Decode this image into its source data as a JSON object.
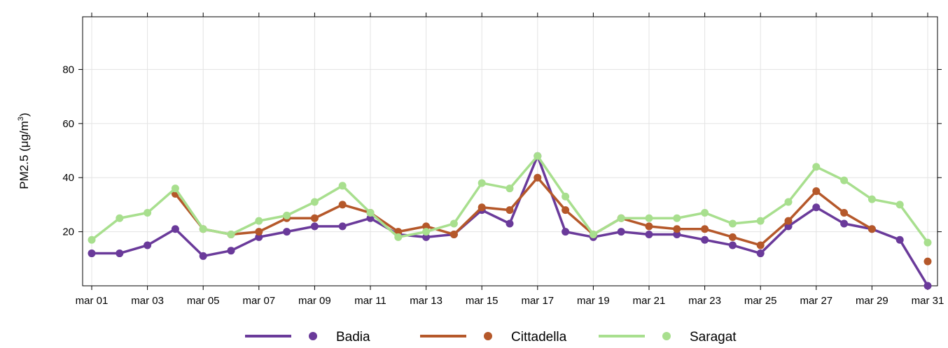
{
  "chart_data": {
    "type": "line",
    "title": "",
    "xlabel": "",
    "ylabel": "PM2.5 (μg/m",
    "ylabel_superscript": "3",
    "ylabel_suffix": ")",
    "ylim": [
      0,
      100
    ],
    "y_ticks": [
      20,
      40,
      60,
      80
    ],
    "x": [
      "mar 01",
      "mar 02",
      "mar 03",
      "mar 04",
      "mar 05",
      "mar 06",
      "mar 07",
      "mar 08",
      "mar 09",
      "mar 10",
      "mar 11",
      "mar 12",
      "mar 13",
      "mar 14",
      "mar 15",
      "mar 16",
      "mar 17",
      "mar 18",
      "mar 19",
      "mar 20",
      "mar 21",
      "mar 22",
      "mar 23",
      "mar 24",
      "mar 25",
      "mar 26",
      "mar 27",
      "mar 28",
      "mar 29",
      "mar 30",
      "mar 31"
    ],
    "x_tick_labels": [
      "mar 01",
      "mar 03",
      "mar 05",
      "mar 07",
      "mar 09",
      "mar 11",
      "mar 13",
      "mar 15",
      "mar 17",
      "mar 19",
      "mar 21",
      "mar 23",
      "mar 25",
      "mar 27",
      "mar 29",
      "mar 31"
    ],
    "grid": true,
    "legend_position": "bottom",
    "series": [
      {
        "name": "Badia",
        "color": "#6a3a9a",
        "values": [
          12,
          12,
          15,
          21,
          11,
          13,
          18,
          20,
          22,
          22,
          25,
          19,
          18,
          19,
          28,
          23,
          48,
          20,
          18,
          20,
          19,
          19,
          17,
          15,
          12,
          22,
          29,
          23,
          21,
          17,
          0
        ]
      },
      {
        "name": "Cittadella",
        "color": "#b5582a",
        "values": [
          null,
          null,
          null,
          34,
          21,
          19,
          20,
          25,
          25,
          30,
          27,
          20,
          22,
          19,
          29,
          28,
          40,
          28,
          19,
          25,
          22,
          21,
          21,
          18,
          15,
          24,
          35,
          27,
          21,
          null,
          9
        ]
      },
      {
        "name": "Saragat",
        "color": "#a8df8e",
        "values": [
          17,
          25,
          27,
          36,
          21,
          19,
          24,
          26,
          31,
          37,
          27,
          18,
          20,
          23,
          38,
          36,
          48,
          33,
          19,
          25,
          25,
          25,
          27,
          23,
          24,
          31,
          44,
          39,
          32,
          30,
          16
        ]
      }
    ]
  }
}
